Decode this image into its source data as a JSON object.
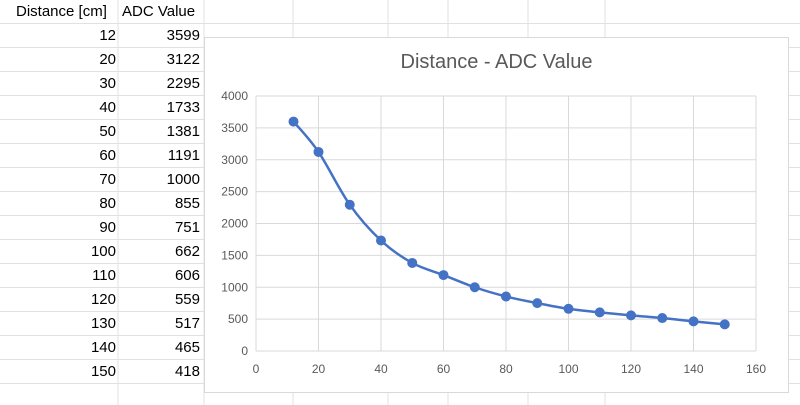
{
  "table": {
    "headers": [
      "Distance [cm]",
      "ADC Value"
    ],
    "rows": [
      [
        "12",
        "3599"
      ],
      [
        "20",
        "3122"
      ],
      [
        "30",
        "2295"
      ],
      [
        "40",
        "1733"
      ],
      [
        "50",
        "1381"
      ],
      [
        "60",
        "1191"
      ],
      [
        "70",
        "1000"
      ],
      [
        "80",
        "855"
      ],
      [
        "90",
        "751"
      ],
      [
        "100",
        "662"
      ],
      [
        "110",
        "606"
      ],
      [
        "120",
        "559"
      ],
      [
        "130",
        "517"
      ],
      [
        "140",
        "465"
      ],
      [
        "150",
        "418"
      ]
    ]
  },
  "chart_data": {
    "type": "scatter",
    "title": "Distance - ADC Value",
    "xlabel": "",
    "ylabel": "",
    "xlim": [
      0,
      160
    ],
    "ylim": [
      0,
      4000
    ],
    "x_ticks": [
      0,
      20,
      40,
      60,
      80,
      100,
      120,
      140,
      160
    ],
    "y_ticks": [
      0,
      500,
      1000,
      1500,
      2000,
      2500,
      3000,
      3500,
      4000
    ],
    "grid": true,
    "legend": "none",
    "smooth_line": true,
    "series": [
      {
        "color": "#4472c4",
        "x": [
          12,
          20,
          30,
          40,
          50,
          60,
          70,
          80,
          90,
          100,
          110,
          120,
          130,
          140,
          150
        ],
        "y": [
          3599,
          3122,
          2295,
          1733,
          1381,
          1191,
          1000,
          855,
          751,
          662,
          606,
          559,
          517,
          465,
          418
        ]
      }
    ]
  }
}
